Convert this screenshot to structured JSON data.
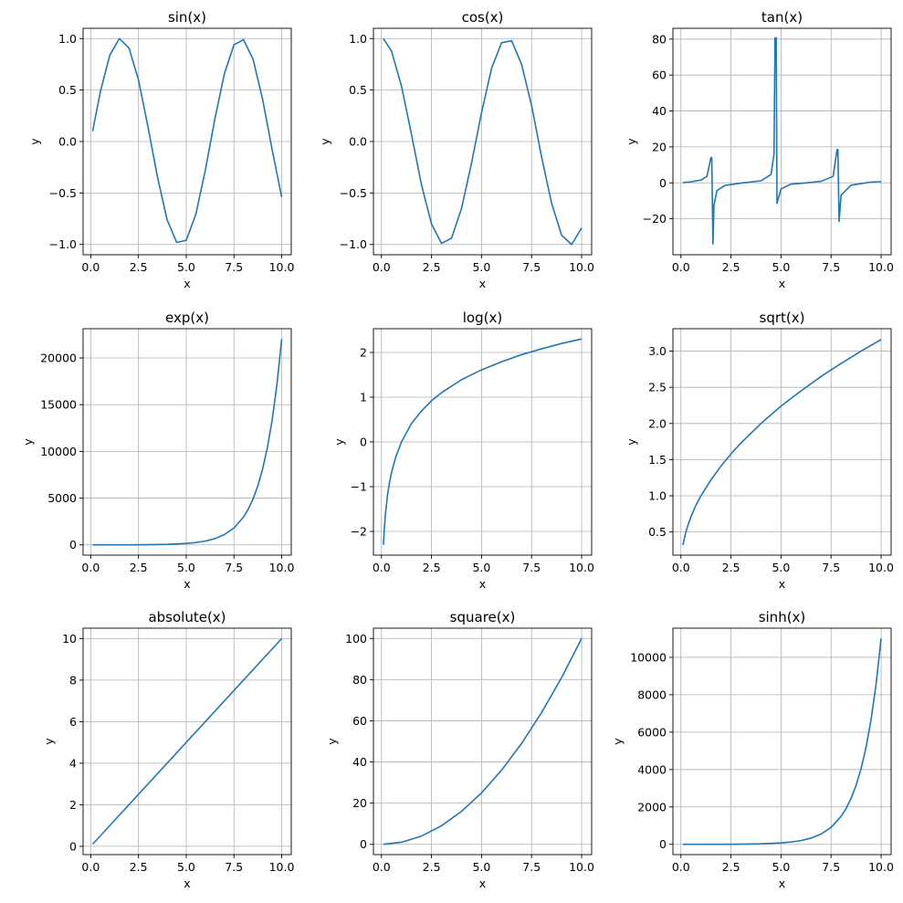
{
  "figure": {
    "line_color": "#1f77b4",
    "grid_color": "#b0b0b0",
    "grid": true
  },
  "chart_data": [
    {
      "type": "line",
      "title": "sin(x)",
      "xlabel": "x",
      "ylabel": "y",
      "xlim": [
        -0.4,
        10.5
      ],
      "ylim": [
        -1.1,
        1.1
      ],
      "xticks": [
        0,
        2.5,
        5,
        7.5,
        10
      ],
      "xticklabels": [
        "0.0",
        "2.5",
        "5.0",
        "7.5",
        "10.0"
      ],
      "yticks": [
        -1,
        -0.5,
        0,
        0.5,
        1
      ],
      "yticklabels": [
        "−1.0",
        "−0.5",
        "0.0",
        "0.5",
        "1.0"
      ],
      "series": [
        {
          "x": [
            0.1,
            0.5,
            1.0,
            1.5,
            2.0,
            2.5,
            3.0,
            3.5,
            4.0,
            4.5,
            5.0,
            5.5,
            6.0,
            6.5,
            7.0,
            7.5,
            8.0,
            8.5,
            9.0,
            9.5,
            10.0
          ],
          "y": [
            0.1,
            0.48,
            0.84,
            1.0,
            0.91,
            0.6,
            0.14,
            -0.35,
            -0.76,
            -0.98,
            -0.96,
            -0.71,
            -0.28,
            0.22,
            0.66,
            0.94,
            0.99,
            0.8,
            0.41,
            -0.08,
            -0.54
          ]
        }
      ]
    },
    {
      "type": "line",
      "title": "cos(x)",
      "xlabel": "x",
      "ylabel": "y",
      "xlim": [
        -0.4,
        10.5
      ],
      "ylim": [
        -1.1,
        1.1
      ],
      "xticks": [
        0,
        2.5,
        5,
        7.5,
        10
      ],
      "xticklabels": [
        "0.0",
        "2.5",
        "5.0",
        "7.5",
        "10.0"
      ],
      "yticks": [
        -1,
        -0.5,
        0,
        0.5,
        1
      ],
      "yticklabels": [
        "−1.0",
        "−0.5",
        "0.0",
        "0.5",
        "1.0"
      ],
      "series": [
        {
          "x": [
            0.1,
            0.5,
            1.0,
            1.5,
            2.0,
            2.5,
            3.0,
            3.5,
            4.0,
            4.5,
            5.0,
            5.5,
            6.0,
            6.5,
            7.0,
            7.5,
            8.0,
            8.5,
            9.0,
            9.5,
            10.0
          ],
          "y": [
            1.0,
            0.88,
            0.54,
            0.07,
            -0.42,
            -0.8,
            -0.99,
            -0.94,
            -0.65,
            -0.21,
            0.28,
            0.71,
            0.96,
            0.98,
            0.75,
            0.35,
            -0.15,
            -0.6,
            -0.91,
            -1.0,
            -0.84
          ]
        }
      ]
    },
    {
      "type": "line",
      "title": "tan(x)",
      "xlabel": "x",
      "ylabel": "y",
      "xlim": [
        -0.4,
        10.5
      ],
      "ylim": [
        -40,
        86
      ],
      "xticks": [
        0,
        2.5,
        5,
        7.5,
        10
      ],
      "xticklabels": [
        "0.0",
        "2.5",
        "5.0",
        "7.5",
        "10.0"
      ],
      "yticks": [
        -20,
        0,
        20,
        40,
        60,
        80
      ],
      "yticklabels": [
        "−20",
        "0",
        "20",
        "40",
        "60",
        "80"
      ],
      "series": [
        {
          "x": [
            0.1,
            0.5,
            1.0,
            1.3,
            1.5,
            1.54,
            1.6,
            1.65,
            1.8,
            2.2,
            3.0,
            4.0,
            4.5,
            4.65,
            4.7,
            4.76,
            4.8,
            5.0,
            5.5,
            6.2,
            7.0,
            7.6,
            7.8,
            7.84,
            7.9,
            8.0,
            8.5,
            9.5,
            10.0
          ],
          "y": [
            0.1,
            0.55,
            1.56,
            3.6,
            14.1,
            14.1,
            -34.0,
            -12.6,
            -4.3,
            -1.4,
            -0.14,
            1.16,
            4.6,
            16.0,
            80.7,
            80.7,
            -11.4,
            -3.4,
            -0.7,
            -0.08,
            0.87,
            3.6,
            18.5,
            18.5,
            -21.5,
            -6.8,
            -1.3,
            0.45,
            0.65
          ]
        }
      ]
    },
    {
      "type": "line",
      "title": "exp(x)",
      "xlabel": "x",
      "ylabel": "y",
      "xlim": [
        -0.4,
        10.5
      ],
      "ylim": [
        -1100,
        23130
      ],
      "xticks": [
        0,
        2.5,
        5,
        7.5,
        10
      ],
      "xticklabels": [
        "0.0",
        "2.5",
        "5.0",
        "7.5",
        "10.0"
      ],
      "yticks": [
        0,
        5000,
        10000,
        15000,
        20000
      ],
      "yticklabels": [
        "0",
        "5000",
        "10000",
        "15000",
        "20000"
      ],
      "series": [
        {
          "x": [
            0.1,
            1,
            2,
            3,
            4,
            5,
            5.5,
            6,
            6.5,
            7,
            7.5,
            8,
            8.25,
            8.5,
            8.75,
            9,
            9.25,
            9.5,
            9.75,
            10
          ],
          "y": [
            1.1,
            2.7,
            7.4,
            20.1,
            54.6,
            148.4,
            244.7,
            403.4,
            665.1,
            1096.6,
            1808.0,
            2981.0,
            3827.6,
            4914.8,
            6310.7,
            8103.1,
            10404.6,
            13359.7,
            17154.2,
            22026.5
          ]
        }
      ]
    },
    {
      "type": "line",
      "title": "log(x)",
      "xlabel": "x",
      "ylabel": "y",
      "xlim": [
        -0.4,
        10.5
      ],
      "ylim": [
        -2.53,
        2.53
      ],
      "xticks": [
        0,
        2.5,
        5,
        7.5,
        10
      ],
      "xticklabels": [
        "0.0",
        "2.5",
        "5.0",
        "7.5",
        "10.0"
      ],
      "yticks": [
        -2,
        -1,
        0,
        1,
        2
      ],
      "yticklabels": [
        "−2",
        "−1",
        "0",
        "1",
        "2"
      ],
      "series": [
        {
          "x": [
            0.1,
            0.15,
            0.2,
            0.3,
            0.4,
            0.5,
            0.7,
            1.0,
            1.5,
            2.0,
            2.5,
            3.0,
            4.0,
            5.0,
            6.0,
            7.0,
            8.0,
            9.0,
            10.0
          ],
          "y": [
            -2.3,
            -1.9,
            -1.61,
            -1.2,
            -0.92,
            -0.69,
            -0.36,
            0.0,
            0.41,
            0.69,
            0.92,
            1.1,
            1.39,
            1.61,
            1.79,
            1.95,
            2.08,
            2.2,
            2.3
          ]
        }
      ]
    },
    {
      "type": "line",
      "title": "sqrt(x)",
      "xlabel": "x",
      "ylabel": "y",
      "xlim": [
        -0.4,
        10.5
      ],
      "ylim": [
        0.18,
        3.31
      ],
      "xticks": [
        0,
        2.5,
        5,
        7.5,
        10
      ],
      "xticklabels": [
        "0.0",
        "2.5",
        "5.0",
        "7.5",
        "10.0"
      ],
      "yticks": [
        0.5,
        1,
        1.5,
        2,
        2.5,
        3
      ],
      "yticklabels": [
        "0.5",
        "1.0",
        "1.5",
        "2.0",
        "2.5",
        "3.0"
      ],
      "series": [
        {
          "x": [
            0.1,
            0.2,
            0.3,
            0.5,
            0.75,
            1,
            1.5,
            2,
            2.5,
            3,
            4,
            5,
            6,
            7,
            8,
            9,
            10
          ],
          "y": [
            0.32,
            0.45,
            0.55,
            0.71,
            0.87,
            1.0,
            1.22,
            1.41,
            1.58,
            1.73,
            2.0,
            2.24,
            2.45,
            2.65,
            2.83,
            3.0,
            3.16
          ]
        }
      ]
    },
    {
      "type": "line",
      "title": "absolute(x)",
      "xlabel": "x",
      "ylabel": "y",
      "xlim": [
        -0.4,
        10.5
      ],
      "ylim": [
        -0.4,
        10.5
      ],
      "xticks": [
        0,
        2.5,
        5,
        7.5,
        10
      ],
      "xticklabels": [
        "0.0",
        "2.5",
        "5.0",
        "7.5",
        "10.0"
      ],
      "yticks": [
        0,
        2,
        4,
        6,
        8,
        10
      ],
      "yticklabels": [
        "0",
        "2",
        "4",
        "6",
        "8",
        "10"
      ],
      "series": [
        {
          "x": [
            0.1,
            10.0
          ],
          "y": [
            0.1,
            10.0
          ]
        }
      ]
    },
    {
      "type": "line",
      "title": "square(x)",
      "xlabel": "x",
      "ylabel": "y",
      "xlim": [
        -0.4,
        10.5
      ],
      "ylim": [
        -5,
        105
      ],
      "xticks": [
        0,
        2.5,
        5,
        7.5,
        10
      ],
      "xticklabels": [
        "0.0",
        "2.5",
        "5.0",
        "7.5",
        "10.0"
      ],
      "yticks": [
        0,
        20,
        40,
        60,
        80,
        100
      ],
      "yticklabels": [
        "0",
        "20",
        "40",
        "60",
        "80",
        "100"
      ],
      "series": [
        {
          "x": [
            0.1,
            1,
            2,
            3,
            4,
            5,
            6,
            7,
            8,
            9,
            10
          ],
          "y": [
            0.01,
            1,
            4,
            9,
            16,
            25,
            36,
            49,
            64,
            81,
            100
          ]
        }
      ]
    },
    {
      "type": "line",
      "title": "sinh(x)",
      "xlabel": "x",
      "ylabel": "y",
      "xlim": [
        -0.4,
        10.5
      ],
      "ylim": [
        -550,
        11560
      ],
      "xticks": [
        0,
        2.5,
        5,
        7.5,
        10
      ],
      "xticklabels": [
        "0.0",
        "2.5",
        "5.0",
        "7.5",
        "10.0"
      ],
      "yticks": [
        0,
        2000,
        4000,
        6000,
        8000,
        10000
      ],
      "yticklabels": [
        "0",
        "2000",
        "4000",
        "6000",
        "8000",
        "10000"
      ],
      "series": [
        {
          "x": [
            0.1,
            1,
            2,
            3,
            4,
            5,
            5.5,
            6,
            6.5,
            7,
            7.5,
            8,
            8.25,
            8.5,
            8.75,
            9,
            9.25,
            9.5,
            9.75,
            10
          ],
          "y": [
            0.1,
            1.2,
            3.6,
            10.0,
            27.3,
            74.2,
            122.3,
            201.7,
            332.6,
            548.3,
            904.0,
            1490.5,
            1913.8,
            2457.4,
            3155.3,
            4051.5,
            5202.3,
            6679.9,
            8577.1,
            11013.2
          ]
        }
      ]
    }
  ]
}
